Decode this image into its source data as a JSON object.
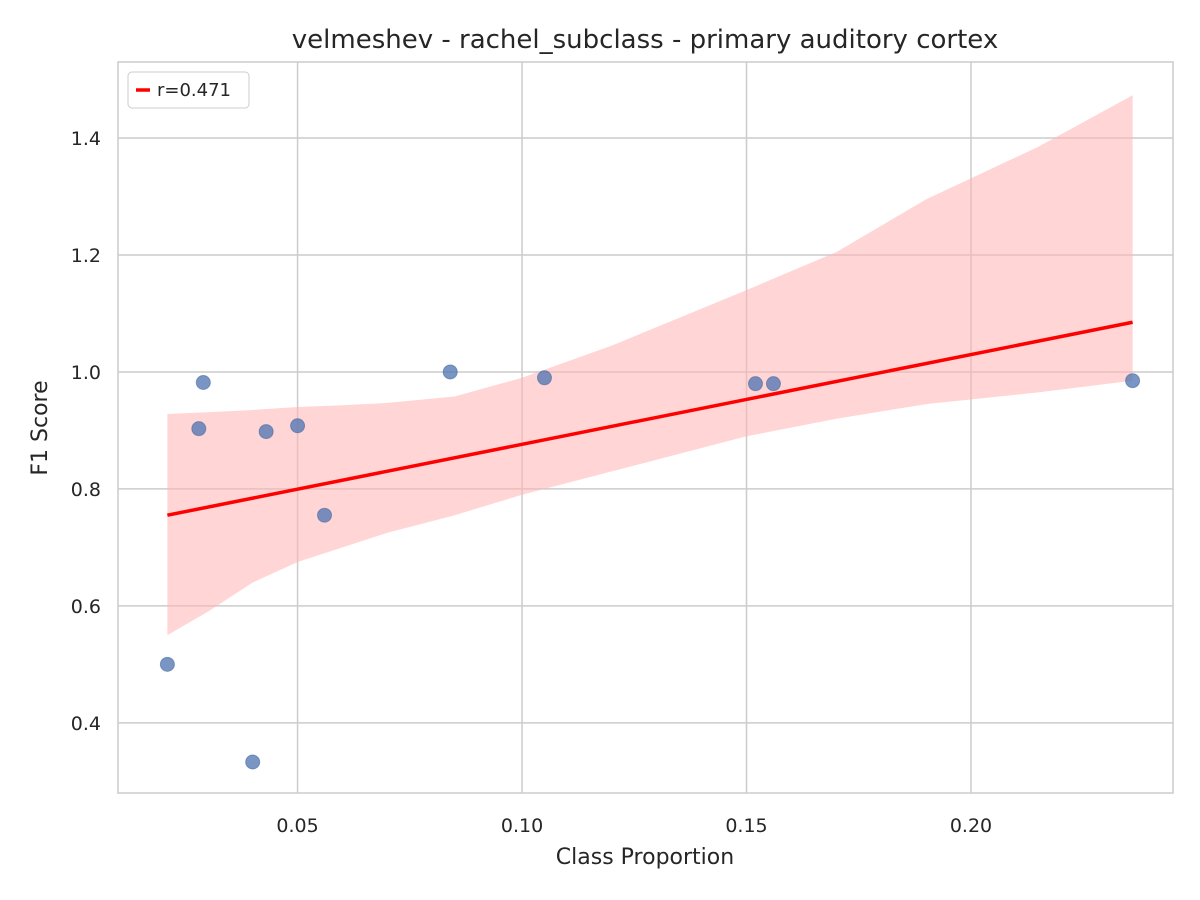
{
  "chart_data": {
    "type": "scatter",
    "title": "velmeshev - rachel_subclass - primary auditory cortex",
    "xlabel": "Class Proportion",
    "ylabel": "F1 Score",
    "xlim": [
      0.01,
      0.245
    ],
    "ylim": [
      0.28,
      1.53
    ],
    "xticks": [
      0.05,
      0.1,
      0.15,
      0.2
    ],
    "xtick_labels": [
      "0.05",
      "0.10",
      "0.15",
      "0.20"
    ],
    "yticks": [
      0.4,
      0.6,
      0.8,
      1.0,
      1.2,
      1.4
    ],
    "ytick_labels": [
      "0.4",
      "0.6",
      "0.8",
      "1.0",
      "1.2",
      "1.4"
    ],
    "grid": true,
    "legend": {
      "position": "top-left",
      "entries": [
        {
          "label": "r=0.471",
          "color": "#ff0000"
        }
      ]
    },
    "points": [
      {
        "x": 0.021,
        "y": 0.5
      },
      {
        "x": 0.028,
        "y": 0.903
      },
      {
        "x": 0.029,
        "y": 0.982
      },
      {
        "x": 0.04,
        "y": 0.333
      },
      {
        "x": 0.043,
        "y": 0.898
      },
      {
        "x": 0.05,
        "y": 0.908
      },
      {
        "x": 0.056,
        "y": 0.755
      },
      {
        "x": 0.084,
        "y": 1.0
      },
      {
        "x": 0.105,
        "y": 0.99
      },
      {
        "x": 0.152,
        "y": 0.98
      },
      {
        "x": 0.156,
        "y": 0.98
      },
      {
        "x": 0.236,
        "y": 0.985
      }
    ],
    "regression_line": {
      "x": [
        0.021,
        0.236
      ],
      "y": [
        0.755,
        1.085
      ],
      "color": "#ff0000"
    },
    "confidence_band": {
      "x": [
        0.021,
        0.03,
        0.04,
        0.05,
        0.06,
        0.07,
        0.085,
        0.1,
        0.12,
        0.15,
        0.17,
        0.19,
        0.215,
        0.236
      ],
      "upper": [
        0.928,
        0.931,
        0.935,
        0.94,
        0.943,
        0.947,
        0.958,
        0.99,
        1.045,
        1.14,
        1.205,
        1.295,
        1.385,
        1.473
      ],
      "lower": [
        0.55,
        0.59,
        0.64,
        0.675,
        0.7,
        0.725,
        0.755,
        0.79,
        0.83,
        0.89,
        0.92,
        0.945,
        0.965,
        0.985
      ],
      "color": "#ffb3b3"
    },
    "point_color": "#4c72b0"
  }
}
